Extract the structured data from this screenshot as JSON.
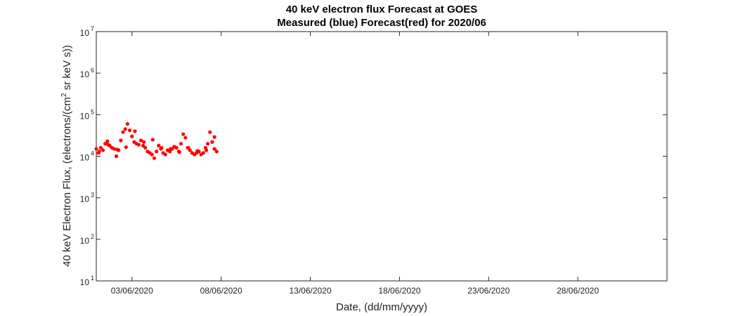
{
  "chart_data": {
    "type": "scatter",
    "title": "40 keV electron flux Forecast at GOES",
    "subtitle": "Measured (blue) Forecast(red) for 2020/06",
    "xlabel": "Date, (dd/mm/yyyy)",
    "ylabel_prefix": "40 keV Electron Flux, (electrons/(cm",
    "ylabel_sup": "2",
    "ylabel_suffix": " sr keV s))",
    "yscale": "log",
    "ylim": [
      10,
      10000000
    ],
    "xlim": [
      "2020-06-01T00:00",
      "2020-07-03T00:00"
    ],
    "grid": false,
    "x_ticks": [
      {
        "date": "2020-06-03",
        "label": "03/06/2020"
      },
      {
        "date": "2020-06-08",
        "label": "08/06/2020"
      },
      {
        "date": "2020-06-13",
        "label": "13/06/2020"
      },
      {
        "date": "2020-06-18",
        "label": "18/06/2020"
      },
      {
        "date": "2020-06-23",
        "label": "23/06/2020"
      },
      {
        "date": "2020-06-28",
        "label": "28/06/2020"
      }
    ],
    "y_ticks": [
      {
        "value": 10,
        "base": "10",
        "exp": "1"
      },
      {
        "value": 100,
        "base": "10",
        "exp": "2"
      },
      {
        "value": 1000,
        "base": "10",
        "exp": "3"
      },
      {
        "value": 10000,
        "base": "10",
        "exp": "4"
      },
      {
        "value": 100000,
        "base": "10",
        "exp": "5"
      },
      {
        "value": 1000000,
        "base": "10",
        "exp": "6"
      },
      {
        "value": 10000000,
        "base": "10",
        "exp": "7"
      }
    ],
    "series": [
      {
        "color": "#ff0000",
        "x": [
          "2020-06-01T00:00",
          "2020-06-01T03:00",
          "2020-06-01T06:00",
          "2020-06-01T09:00",
          "2020-06-01T12:00",
          "2020-06-01T15:00",
          "2020-06-01T18:00",
          "2020-06-01T21:00",
          "2020-06-02T00:00",
          "2020-06-02T03:00",
          "2020-06-02T06:00",
          "2020-06-02T09:00",
          "2020-06-02T12:00",
          "2020-06-02T15:00",
          "2020-06-02T18:00",
          "2020-06-02T21:00",
          "2020-06-03T00:00",
          "2020-06-03T03:00",
          "2020-06-03T06:00",
          "2020-06-03T09:00",
          "2020-06-03T12:00",
          "2020-06-03T15:00",
          "2020-06-03T18:00",
          "2020-06-03T21:00",
          "2020-06-04T00:00",
          "2020-06-04T03:00",
          "2020-06-04T06:00",
          "2020-06-04T09:00",
          "2020-06-04T12:00",
          "2020-06-04T15:00",
          "2020-06-04T18:00",
          "2020-06-04T21:00",
          "2020-06-05T00:00",
          "2020-06-05T03:00",
          "2020-06-05T06:00",
          "2020-06-05T09:00",
          "2020-06-05T12:00",
          "2020-06-05T15:00",
          "2020-06-05T18:00",
          "2020-06-05T21:00",
          "2020-06-06T00:00",
          "2020-06-06T03:00",
          "2020-06-06T06:00",
          "2020-06-06T09:00",
          "2020-06-06T12:00",
          "2020-06-06T15:00",
          "2020-06-06T18:00",
          "2020-06-06T21:00",
          "2020-06-07T00:00",
          "2020-06-07T03:00",
          "2020-06-07T06:00",
          "2020-06-07T09:00",
          "2020-06-07T12:00",
          "2020-06-07T15:00",
          "2020-06-07T18:00",
          "2020-06-01T04:00",
          "2020-06-01T16:00",
          "2020-06-02T04:00",
          "2020-06-02T16:00",
          "2020-06-03T04:00",
          "2020-06-03T16:00",
          "2020-06-04T04:00",
          "2020-06-04T16:00",
          "2020-06-05T04:00",
          "2020-06-05T16:00",
          "2020-06-06T04:00",
          "2020-06-06T16:00",
          "2020-06-07T04:00",
          "2020-06-07T15:00"
        ],
        "y": [
          15000,
          12000,
          16000,
          14000,
          20000,
          23000,
          18000,
          16000,
          15000,
          10000,
          14000,
          24000,
          38000,
          45000,
          60000,
          42000,
          30000,
          22000,
          20000,
          19000,
          24000,
          18000,
          16000,
          13000,
          12000,
          11000,
          9000,
          13000,
          18000,
          15000,
          12000,
          11000,
          14000,
          13000,
          15000,
          17000,
          16000,
          13000,
          20000,
          34000,
          28000,
          16000,
          14000,
          12000,
          11000,
          12000,
          13000,
          11000,
          12000,
          16000,
          20000,
          38000,
          22000,
          15000,
          13000,
          13000,
          19000,
          14500,
          16500,
          40000,
          22000,
          25000,
          16000,
          15000,
          12500,
          16000,
          13500,
          14000,
          29000
        ]
      }
    ]
  }
}
